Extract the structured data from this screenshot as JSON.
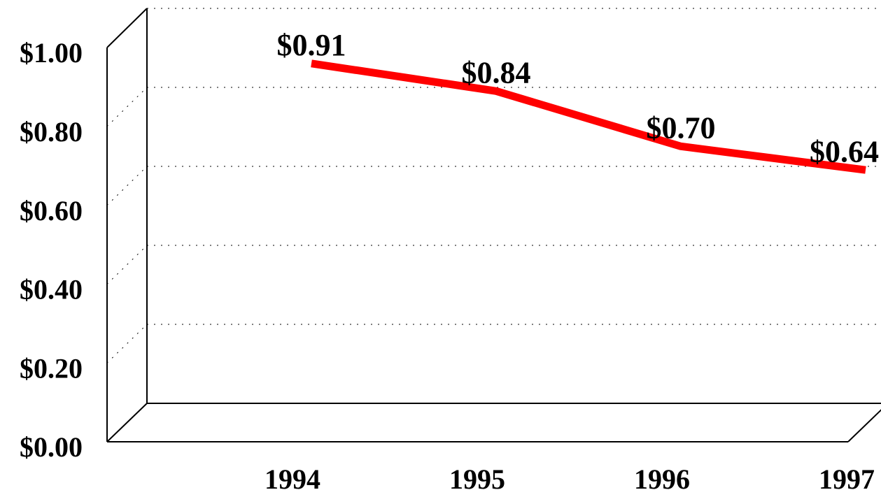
{
  "chart_data": {
    "type": "line",
    "categories": [
      "1994",
      "1995",
      "1996",
      "1997"
    ],
    "series": [
      {
        "color": "#ff0000",
        "values": [
          0.91,
          0.84,
          0.7,
          0.64
        ],
        "value_labels": [
          "$0.91",
          "$0.84",
          "$0.70",
          "$0.64"
        ]
      }
    ],
    "ylim": [
      0,
      1
    ],
    "yticks": [
      {
        "value": 0,
        "label": "$0.00"
      },
      {
        "value": 0.2,
        "label": "$0.20"
      },
      {
        "value": 0.4,
        "label": "$0.40"
      },
      {
        "value": 0.6,
        "label": "$0.60"
      },
      {
        "value": 0.8,
        "label": "$0.80"
      },
      {
        "value": 1,
        "label": "$1.00"
      }
    ],
    "grid": true
  }
}
